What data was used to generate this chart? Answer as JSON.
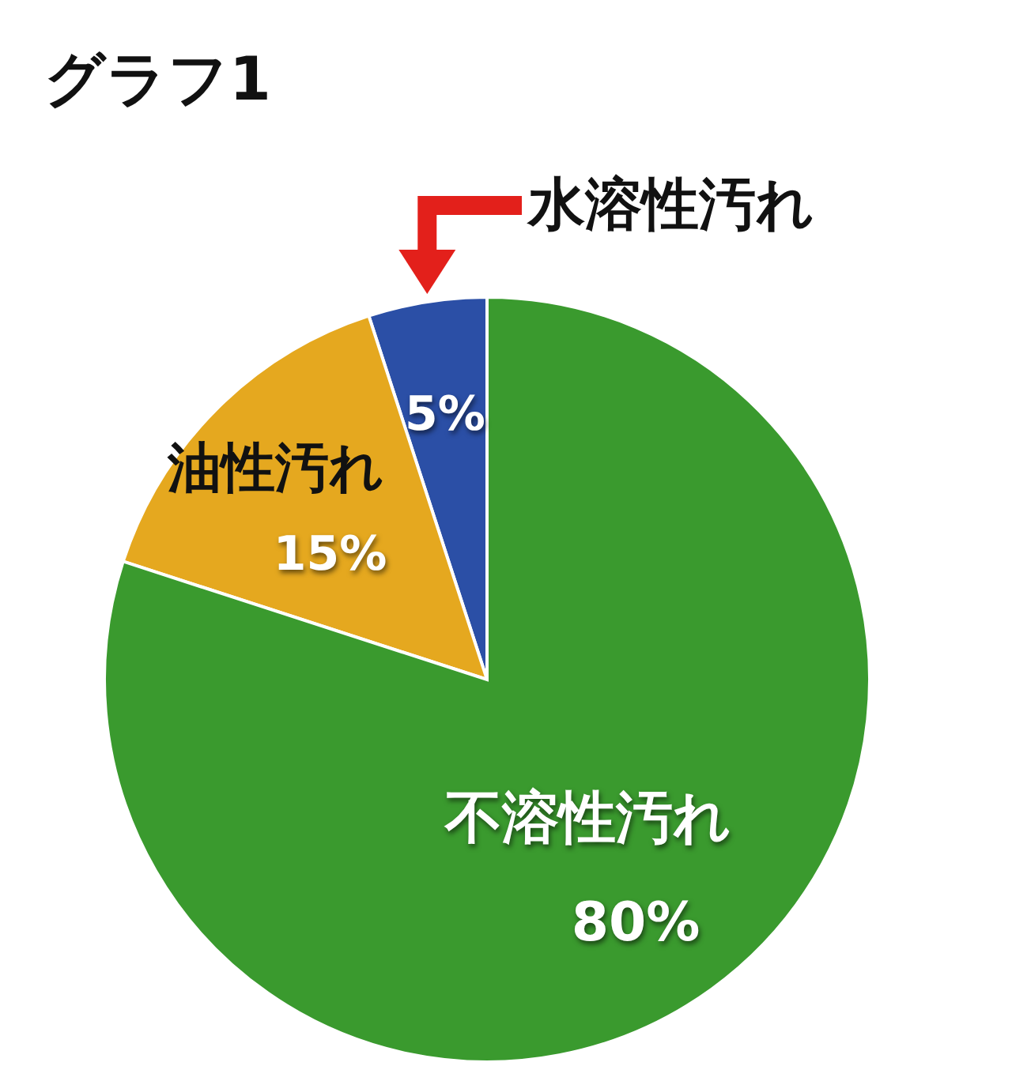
{
  "chart_data": {
    "type": "pie",
    "title": "グラフ1",
    "categories": [
      "水溶性汚れ",
      "油性汚れ",
      "不溶性汚れ"
    ],
    "values": [
      5,
      15,
      80
    ],
    "value_labels": [
      "5%",
      "15%",
      "80%"
    ],
    "colors": [
      "#2b4fa6",
      "#e5a81f",
      "#3a9a2e"
    ]
  }
}
